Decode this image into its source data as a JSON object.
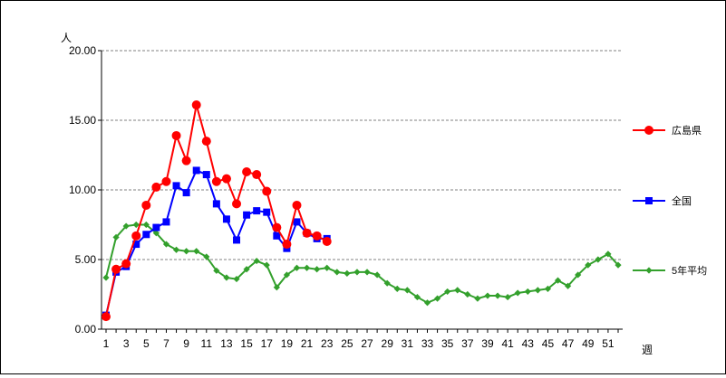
{
  "chart_data": {
    "type": "line",
    "title": "",
    "ylabel": "人",
    "xlabel": "週",
    "ylim": [
      0,
      20
    ],
    "xlim": [
      1,
      52
    ],
    "yticks": [
      0,
      5,
      10,
      15,
      20
    ],
    "ytick_labels": [
      "0.00",
      "5.00",
      "10.00",
      "15.00",
      "20.00"
    ],
    "xticks": [
      1,
      3,
      5,
      7,
      9,
      11,
      13,
      15,
      17,
      19,
      21,
      23,
      25,
      27,
      29,
      31,
      33,
      35,
      37,
      39,
      41,
      43,
      45,
      47,
      49,
      51
    ],
    "grid": true,
    "legend_position": "right",
    "series": [
      {
        "name": "広島県",
        "color": "#ff0000",
        "marker": "circle",
        "x": [
          1,
          2,
          3,
          4,
          5,
          6,
          7,
          8,
          9,
          10,
          11,
          12,
          13,
          14,
          15,
          16,
          17,
          18,
          19,
          20,
          21,
          22,
          23
        ],
        "values": [
          0.9,
          4.3,
          4.7,
          6.7,
          8.9,
          10.2,
          10.6,
          13.9,
          12.1,
          16.1,
          13.5,
          10.6,
          10.8,
          9.0,
          11.3,
          11.1,
          9.9,
          7.3,
          6.1,
          8.9,
          6.9,
          6.7,
          6.3
        ]
      },
      {
        "name": "全国",
        "color": "#0000ff",
        "marker": "square",
        "x": [
          1,
          2,
          3,
          4,
          5,
          6,
          7,
          8,
          9,
          10,
          11,
          12,
          13,
          14,
          15,
          16,
          17,
          18,
          19,
          20,
          21,
          22,
          23
        ],
        "values": [
          1.0,
          4.1,
          4.5,
          6.1,
          6.8,
          7.3,
          7.7,
          10.3,
          9.8,
          11.4,
          11.1,
          9.0,
          7.9,
          6.4,
          8.2,
          8.5,
          8.4,
          6.7,
          5.8,
          7.7,
          6.9,
          6.5,
          6.5
        ]
      },
      {
        "name": "5年平均",
        "color": "#33a02c",
        "marker": "diamond",
        "x": [
          1,
          2,
          3,
          4,
          5,
          6,
          7,
          8,
          9,
          10,
          11,
          12,
          13,
          14,
          15,
          16,
          17,
          18,
          19,
          20,
          21,
          22,
          23,
          24,
          25,
          26,
          27,
          28,
          29,
          30,
          31,
          32,
          33,
          34,
          35,
          36,
          37,
          38,
          39,
          40,
          41,
          42,
          43,
          44,
          45,
          46,
          47,
          48,
          49,
          50,
          51,
          52
        ],
        "values": [
          3.7,
          6.6,
          7.4,
          7.5,
          7.5,
          6.9,
          6.1,
          5.7,
          5.6,
          5.6,
          5.2,
          4.2,
          3.7,
          3.6,
          4.3,
          4.9,
          4.6,
          3.0,
          3.9,
          4.4,
          4.4,
          4.3,
          4.4,
          4.1,
          4.0,
          4.1,
          4.1,
          3.9,
          3.3,
          2.9,
          2.8,
          2.3,
          1.9,
          2.2,
          2.7,
          2.8,
          2.5,
          2.2,
          2.4,
          2.4,
          2.3,
          2.6,
          2.7,
          2.8,
          2.9,
          3.5,
          3.1,
          3.9,
          4.6,
          5.0,
          5.4,
          4.6
        ]
      }
    ]
  }
}
